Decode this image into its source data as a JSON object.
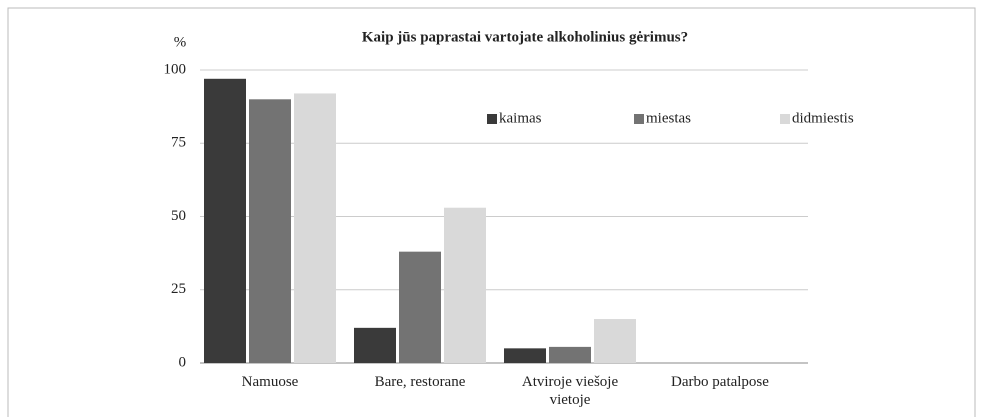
{
  "chart_data": {
    "type": "bar",
    "title": "Kaip jūs paprastai vartojate alkoholinius gėrimus?",
    "y_label": "%",
    "categories": [
      "Namuose",
      "Bare, restorane",
      "Atviroje viešoje vietoje",
      "Darbo patalpose"
    ],
    "series": [
      {
        "name": "kaimas",
        "color": "#3a3a3a",
        "values": [
          97,
          12,
          5,
          0
        ]
      },
      {
        "name": "miestas",
        "color": "#737373",
        "values": [
          90,
          38,
          5.5,
          0
        ]
      },
      {
        "name": "didmiestis",
        "color": "#d9d9d9",
        "values": [
          92,
          53,
          15,
          0
        ]
      }
    ],
    "ylim": [
      0,
      100
    ],
    "yticks": [
      0,
      25,
      50,
      75,
      100
    ],
    "grid": true,
    "legend": "upper right"
  }
}
